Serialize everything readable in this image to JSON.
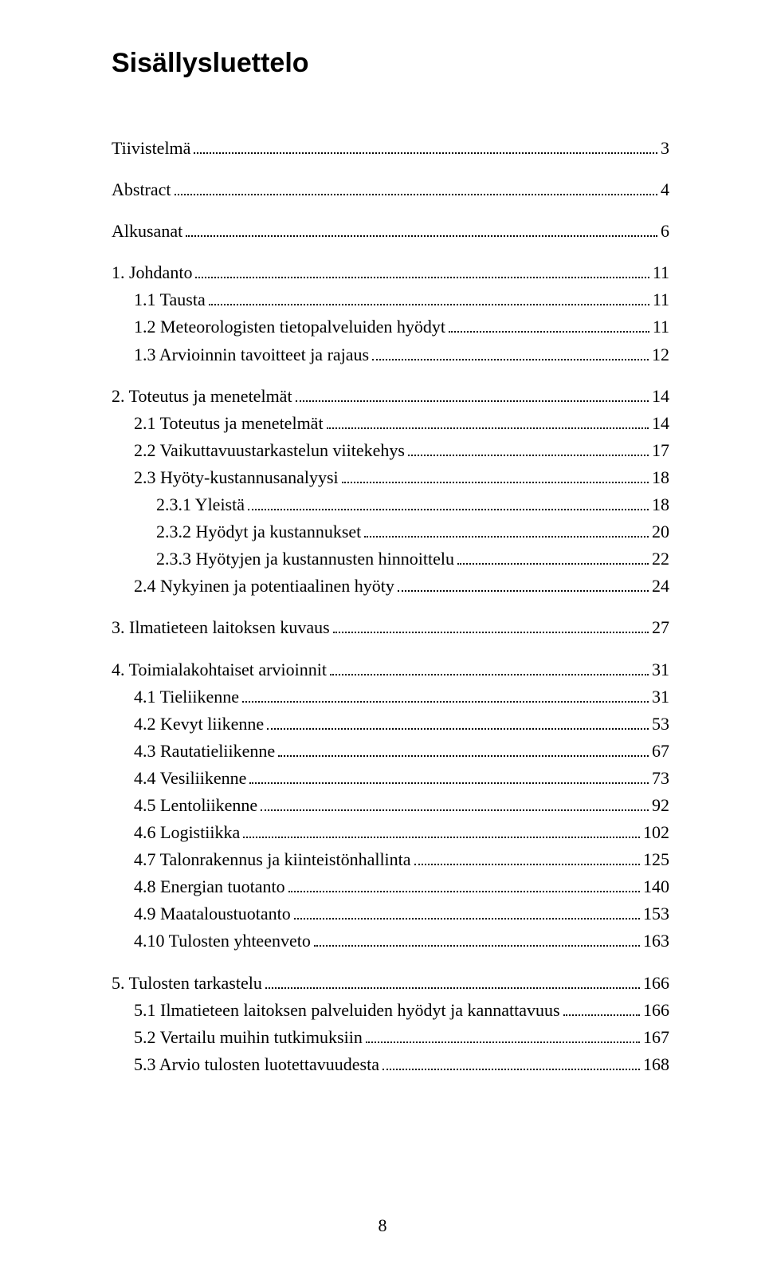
{
  "title": "Sisällysluettelo",
  "page_number": "8",
  "entries": [
    {
      "level": 0,
      "text": "Tiivistelmä",
      "page": "3",
      "gap": true
    },
    {
      "level": 0,
      "text": "Abstract",
      "page": "4",
      "gap": true
    },
    {
      "level": 0,
      "text": "Alkusanat",
      "page": "6",
      "gap": true
    },
    {
      "level": 0,
      "text": "1.  Johdanto",
      "page": "11",
      "gap": true
    },
    {
      "level": 1,
      "text": "1.1 Tausta",
      "page": "11",
      "gap": false
    },
    {
      "level": 1,
      "text": "1.2 Meteorologisten tietopalveluiden hyödyt",
      "page": "11",
      "gap": false
    },
    {
      "level": 1,
      "text": "1.3 Arvioinnin tavoitteet ja rajaus",
      "page": "12",
      "gap": false
    },
    {
      "level": 0,
      "text": "2.  Toteutus ja menetelmät",
      "page": "14",
      "gap": true
    },
    {
      "level": 1,
      "text": "2.1 Toteutus ja menetelmät",
      "page": "14",
      "gap": false
    },
    {
      "level": 1,
      "text": "2.2 Vaikuttavuustarkastelun viitekehys",
      "page": "17",
      "gap": false
    },
    {
      "level": 1,
      "text": "2.3 Hyöty-kustannusanalyysi",
      "page": "18",
      "gap": false
    },
    {
      "level": 2,
      "text": "2.3.1 Yleistä",
      "page": "18",
      "gap": false
    },
    {
      "level": 2,
      "text": "2.3.2 Hyödyt ja kustannukset",
      "page": "20",
      "gap": false
    },
    {
      "level": 2,
      "text": "2.3.3 Hyötyjen ja kustannusten hinnoittelu",
      "page": "22",
      "gap": false
    },
    {
      "level": 1,
      "text": "2.4 Nykyinen ja potentiaalinen hyöty",
      "page": "24",
      "gap": false
    },
    {
      "level": 0,
      "text": "3.  Ilmatieteen laitoksen kuvaus",
      "page": "27",
      "gap": true
    },
    {
      "level": 0,
      "text": "4.  Toimialakohtaiset arvioinnit",
      "page": "31",
      "gap": true
    },
    {
      "level": 1,
      "text": "4.1 Tieliikenne",
      "page": "31",
      "gap": false
    },
    {
      "level": 1,
      "text": "4.2 Kevyt liikenne",
      "page": "53",
      "gap": false
    },
    {
      "level": 1,
      "text": "4.3 Rautatieliikenne",
      "page": "67",
      "gap": false
    },
    {
      "level": 1,
      "text": "4.4 Vesiliikenne",
      "page": "73",
      "gap": false
    },
    {
      "level": 1,
      "text": "4.5 Lentoliikenne",
      "page": "92",
      "gap": false
    },
    {
      "level": 1,
      "text": "4.6 Logistiikka",
      "page": "102",
      "gap": false
    },
    {
      "level": 1,
      "text": "4.7 Talonrakennus ja kiinteistönhallinta",
      "page": "125",
      "gap": false
    },
    {
      "level": 1,
      "text": "4.8 Energian tuotanto",
      "page": "140",
      "gap": false
    },
    {
      "level": 1,
      "text": "4.9 Maataloustuotanto",
      "page": "153",
      "gap": false
    },
    {
      "level": 1,
      "text": "4.10 Tulosten yhteenveto",
      "page": "163",
      "gap": false
    },
    {
      "level": 0,
      "text": "5.  Tulosten tarkastelu",
      "page": "166",
      "gap": true
    },
    {
      "level": 1,
      "text": "5.1 Ilmatieteen laitoksen palveluiden hyödyt ja kannattavuus",
      "page": "166",
      "gap": false
    },
    {
      "level": 1,
      "text": "5.2 Vertailu muihin tutkimuksiin",
      "page": "167",
      "gap": false
    },
    {
      "level": 1,
      "text": "5.3 Arvio tulosten luotettavuudesta",
      "page": "168",
      "gap": false
    }
  ]
}
